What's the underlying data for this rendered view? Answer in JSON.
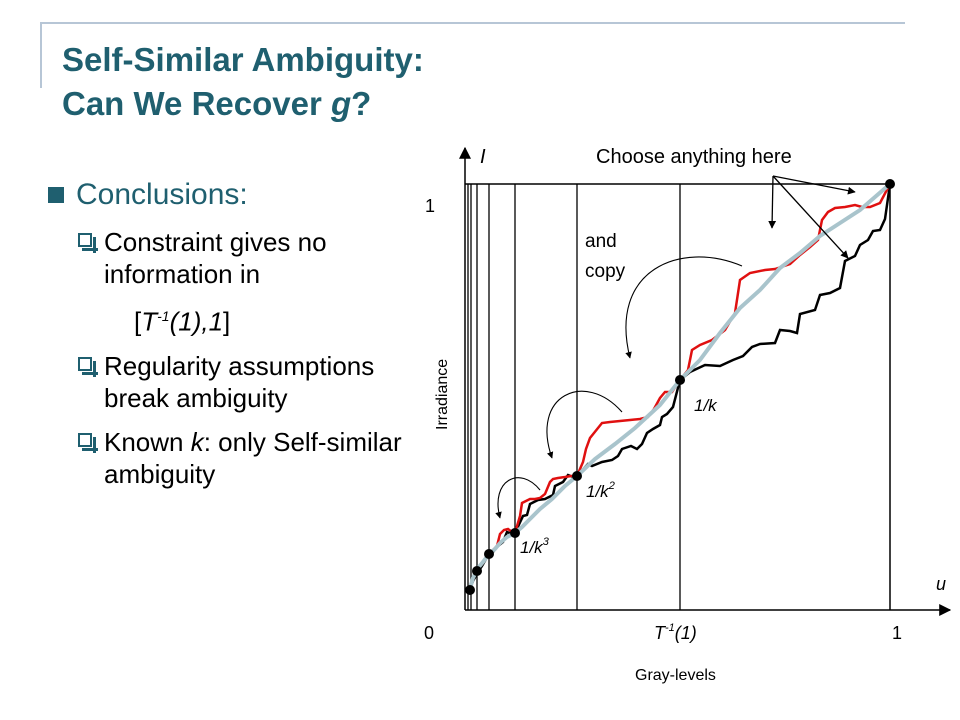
{
  "title": {
    "line1": "Self-Similar Ambiguity:",
    "line2_prefix": "Can We Recover ",
    "line2_var": "g",
    "line2_suffix": "?"
  },
  "bullets": {
    "heading": "Conclusions:",
    "items": [
      {
        "text": "Constraint gives no information in"
      },
      {
        "text": "Regularity assumptions break ambiguity"
      },
      {
        "prefix": "Known ",
        "var": "k",
        "suffix": ": only Self-similar ambiguity"
      }
    ],
    "interval": {
      "open": "[",
      "t": "T",
      "sup": "-1",
      "arg": "(1),1",
      "close": "]"
    }
  },
  "diagram": {
    "y_axis_var": "I",
    "x_axis_var": "u",
    "y_axis_label": "Irradiance",
    "x_axis_label": "Gray-levels",
    "y_tick_one": "1",
    "x_tick_zero": "0",
    "x_tick_one": "1",
    "x_tick_mid": {
      "t": "T",
      "sup": "-1",
      "arg": "(1)"
    },
    "annotation_choose": "Choose anything here",
    "annotation_and": "and",
    "annotation_copy": "copy",
    "point_labels": [
      {
        "base": "1/k",
        "sup": ""
      },
      {
        "base": "1/k",
        "sup": "2"
      },
      {
        "base": "1/k",
        "sup": "3"
      }
    ],
    "colors": {
      "red": "#e01010",
      "black": "#000000",
      "gray": "#a9c4cc",
      "title": "#1f5f6f"
    }
  }
}
